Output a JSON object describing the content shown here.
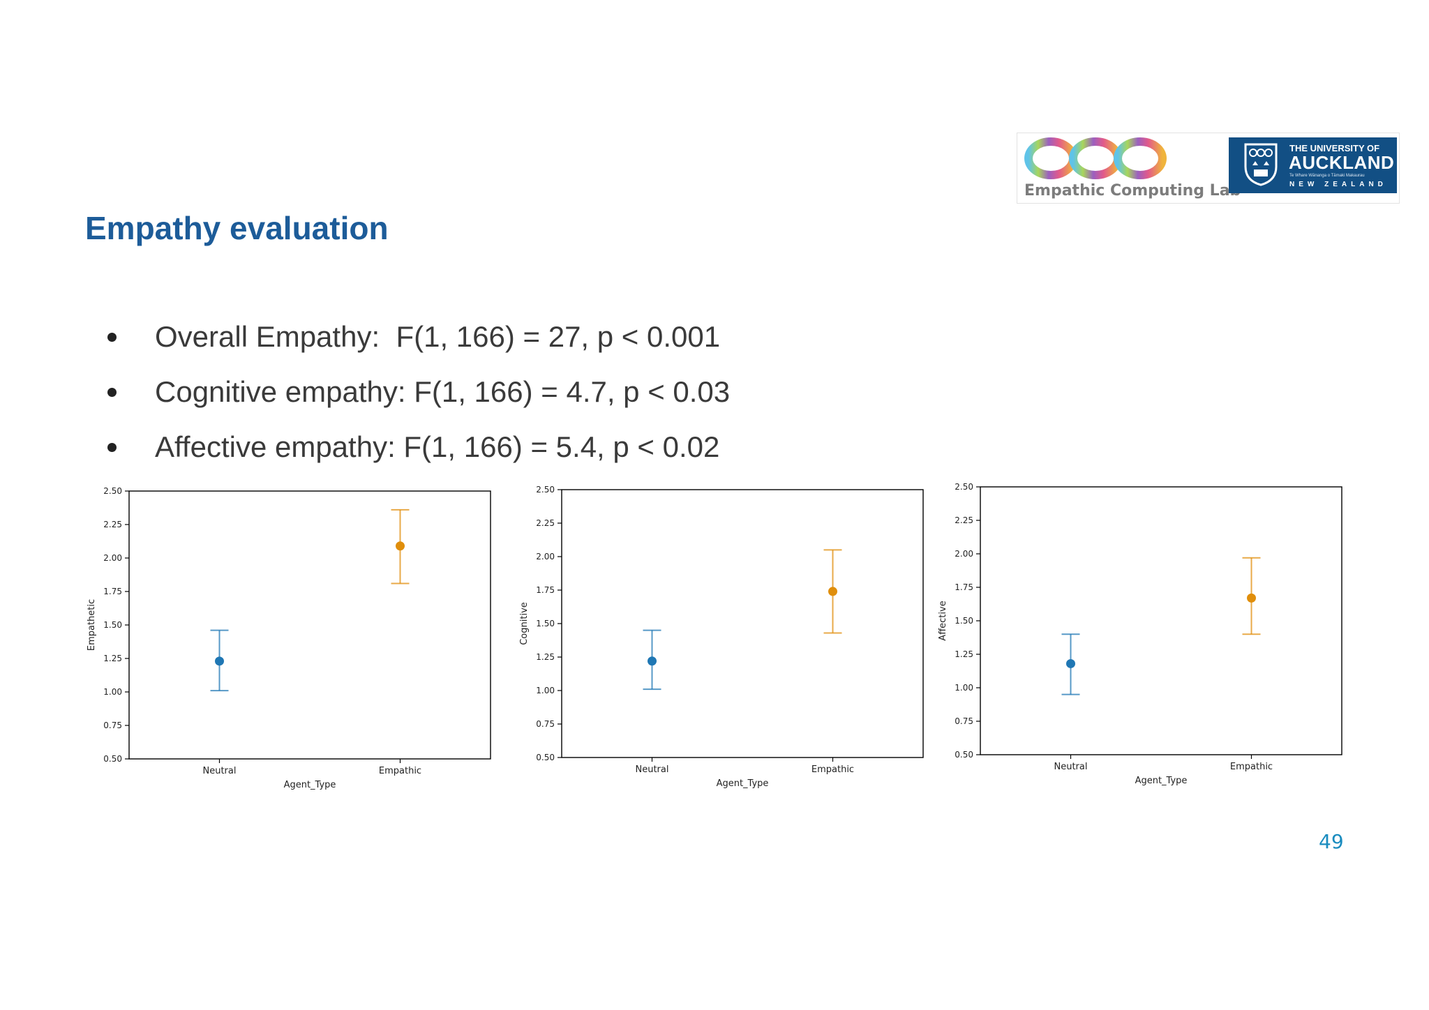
{
  "slide": {
    "title": "Empathy evaluation",
    "bullets": [
      "Overall Empathy:  F(1, 166) = 27, p < 0.001",
      "Cognitive empathy: F(1, 166) = 4.7, p < 0.03",
      "Affective empathy: F(1, 166) = 5.4, p < 0.02"
    ],
    "page_number": "49"
  },
  "logos": {
    "lab_name": "Empathic Computing Lab",
    "university_line1": "THE UNIVERSITY OF",
    "university_line2": "AUCKLAND",
    "university_line3": "Te Whare Wānanga o Tāmaki Makaurau",
    "university_line4": "NEW ZEALAND",
    "university_color": "#124f84"
  },
  "colors": {
    "neutral": "#1f77b4",
    "empathic": "#e08e0b",
    "title": "#1d5c99",
    "page_number": "#1a8cbf"
  },
  "chart_data": [
    {
      "type": "scatter",
      "categories": [
        "Neutral",
        "Empathic"
      ],
      "values": [
        1.23,
        2.09
      ],
      "ci_low": [
        1.01,
        1.81
      ],
      "ci_high": [
        1.46,
        2.36
      ],
      "xlabel": "Agent_Type",
      "ylabel": "Empathetic",
      "ylim": [
        0.5,
        2.5
      ],
      "yticks": [
        "0.50",
        "0.75",
        "1.00",
        "1.25",
        "1.50",
        "1.75",
        "2.00",
        "2.25",
        "2.50"
      ],
      "grid": false
    },
    {
      "type": "scatter",
      "categories": [
        "Neutral",
        "Empathic"
      ],
      "values": [
        1.22,
        1.74
      ],
      "ci_low": [
        1.01,
        1.43
      ],
      "ci_high": [
        1.45,
        2.05
      ],
      "xlabel": "Agent_Type",
      "ylabel": "Cognitive",
      "ylim": [
        0.5,
        2.5
      ],
      "yticks": [
        "0.50",
        "0.75",
        "1.00",
        "1.25",
        "1.50",
        "1.75",
        "2.00",
        "2.25",
        "2.50"
      ],
      "grid": false
    },
    {
      "type": "scatter",
      "categories": [
        "Neutral",
        "Empathic"
      ],
      "values": [
        1.18,
        1.67
      ],
      "ci_low": [
        0.95,
        1.4
      ],
      "ci_high": [
        1.4,
        1.97
      ],
      "xlabel": "Agent_Type",
      "ylabel": "Affective",
      "ylim": [
        0.5,
        2.5
      ],
      "yticks": [
        "0.50",
        "0.75",
        "1.00",
        "1.25",
        "1.50",
        "1.75",
        "2.00",
        "2.25",
        "2.50"
      ],
      "grid": false
    }
  ]
}
